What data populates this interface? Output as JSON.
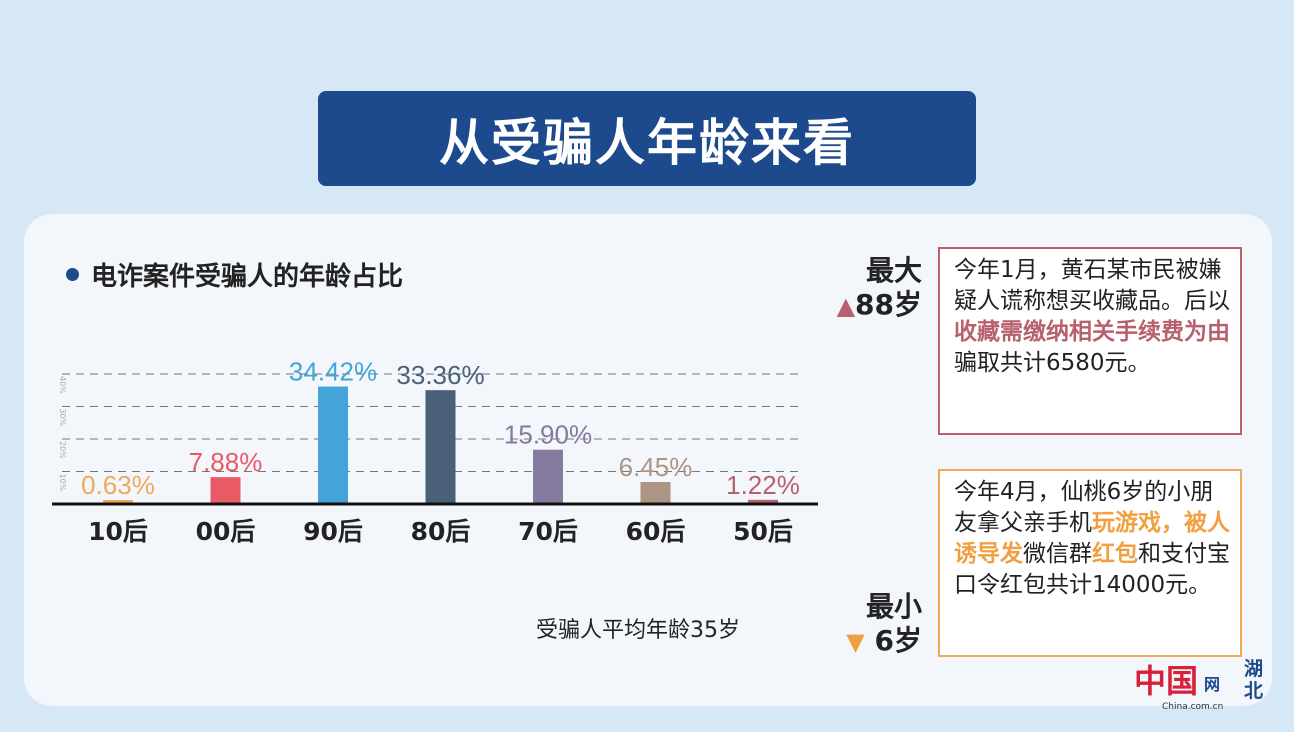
{
  "title": "从受骗人年龄来看",
  "chart_data": {
    "type": "bar",
    "title": "电诈案件受骗人的年龄占比",
    "categories": [
      "10后",
      "00后",
      "90后",
      "80后",
      "70后",
      "60后",
      "50后"
    ],
    "values": [
      0.63,
      7.88,
      34.42,
      33.36,
      15.9,
      6.45,
      1.22
    ],
    "labels": [
      "0.63%",
      "7.88%",
      "34.42%",
      "33.36%",
      "15.90%",
      "6.45%",
      "1.22%"
    ],
    "colors": [
      "#f0a95a",
      "#e85a66",
      "#44a3d8",
      "#4a6079",
      "#857b9e",
      "#ad9584",
      "#b8606e"
    ],
    "yticks": [
      "10%",
      "20%",
      "30%",
      "40%"
    ],
    "ylim": [
      0,
      40
    ],
    "grid": true
  },
  "average": "受骗人平均年龄35岁",
  "max": {
    "label": "最大",
    "value": "88岁",
    "arrow": "▲",
    "color": "#b8606e"
  },
  "min": {
    "label": "最小",
    "value": "6岁",
    "arrow": "▼",
    "color": "#f0a040"
  },
  "case1": {
    "a": "今年1月，黄石某市民被嫌疑人谎称想买收藏品。后以",
    "hl": "收藏需缴纳相关手续费为由",
    "b": "骗取共计6580元。"
  },
  "case2": {
    "a": "今年4月，仙桃6岁的小朋友拿父亲手机",
    "hl1": "玩游戏，被人诱导发",
    "b": "微信群",
    "hl2": "红包",
    "c": "和支付宝口令红包共计14000元。"
  },
  "logo": {
    "text": "中国网",
    "sub": "China.com.cn",
    "region": "湖北"
  }
}
